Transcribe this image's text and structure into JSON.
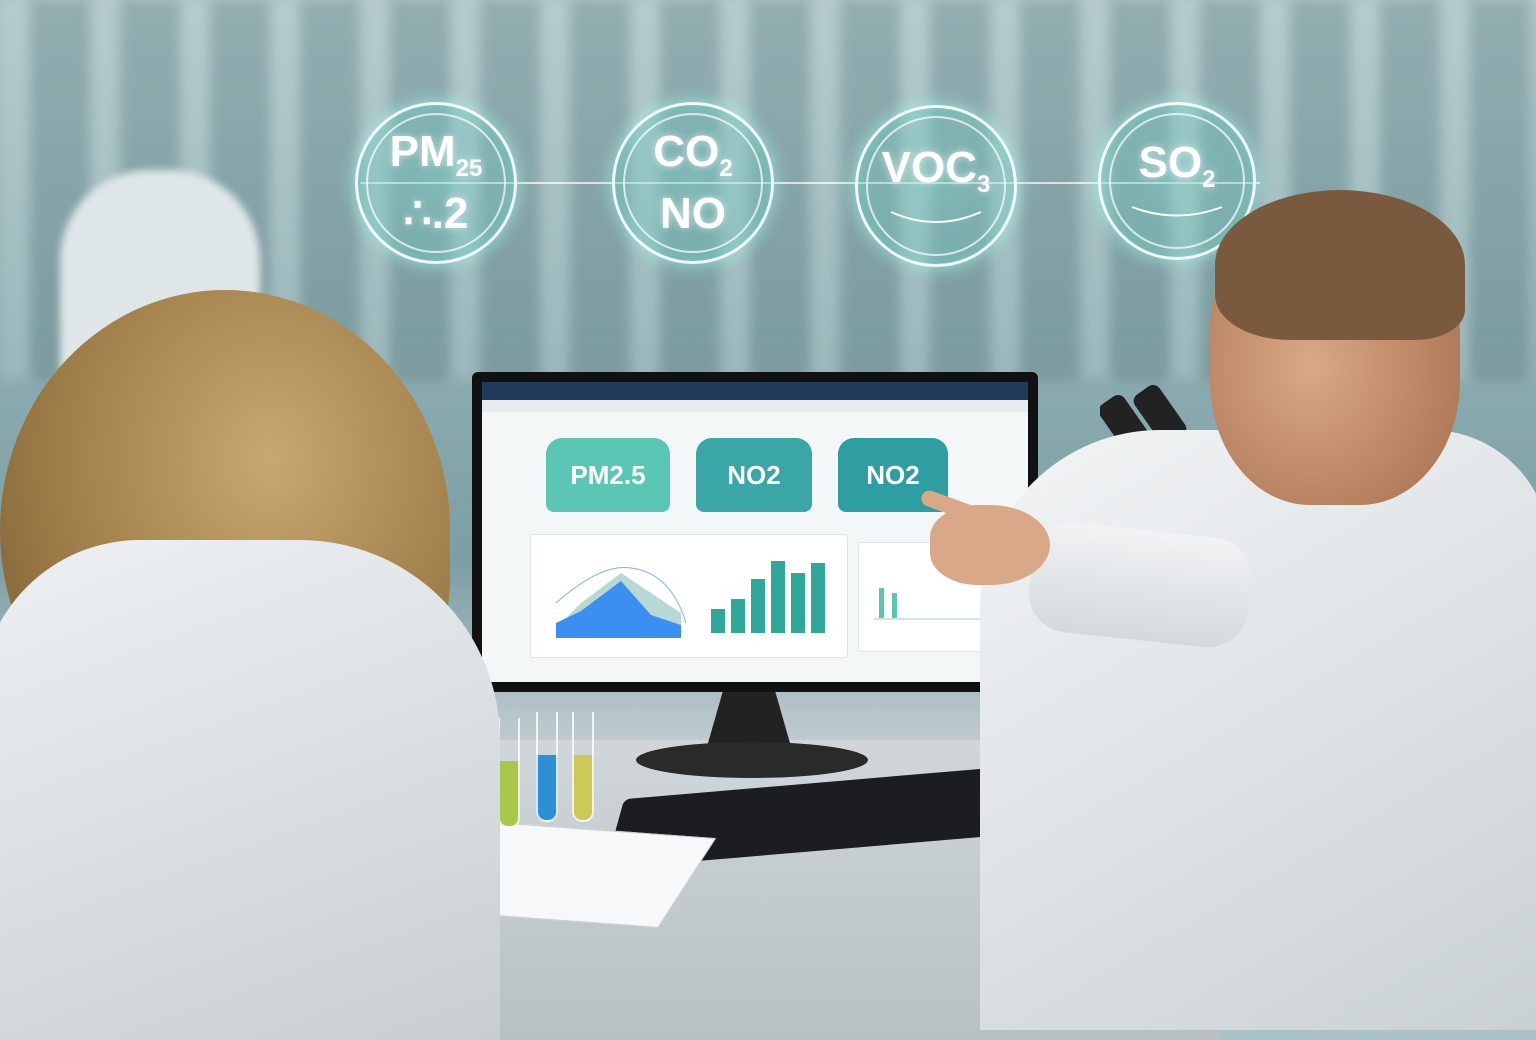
{
  "hologram_badges": [
    {
      "main": "PM",
      "sub": "25",
      "line2": "∴.2",
      "icon": "particulate-icon"
    },
    {
      "main": "CO",
      "sub": "2",
      "line2": "NO",
      "icon": "gas-icon"
    },
    {
      "main": "VOC",
      "sub": "3",
      "line2": "",
      "icon": "wave-icon"
    },
    {
      "main": "SO",
      "sub": "2",
      "line2": "",
      "icon": "wave-icon"
    }
  ],
  "dashboard": {
    "cards": [
      {
        "title": "PM2.5",
        "color": "#5cc6b4"
      },
      {
        "title": "NO2",
        "color": "#3aa6a6"
      },
      {
        "title": "NO2",
        "color": "#2f9ea2"
      }
    ],
    "area_color": "#3b8ff0",
    "bar_color": "#2fa89a"
  },
  "colors": {
    "hologram": "#7fd6c9",
    "coat": "#eef1f3",
    "monitor_header": "#1f3b5c"
  }
}
